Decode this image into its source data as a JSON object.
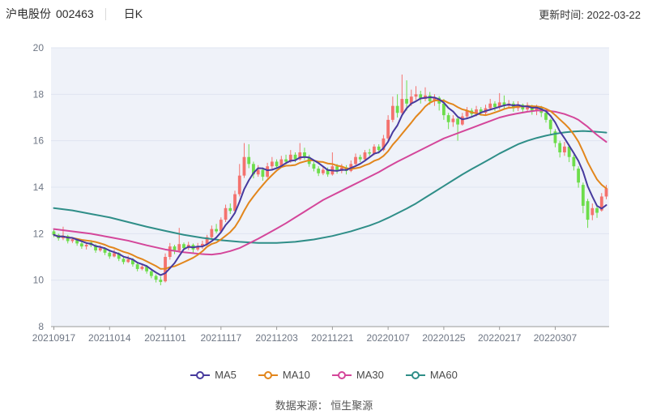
{
  "header": {
    "stock_name": "沪电股份",
    "stock_code": "002463",
    "period_label": "日K",
    "update_label": "更新时间: 2022-03-22"
  },
  "footer": {
    "source_label": "数据来源： 恒生聚源"
  },
  "chart_data": {
    "type": "candlestick",
    "title": "沪电股份 002463 日K",
    "xlabel": "",
    "ylabel": "",
    "ylim": [
      8,
      20
    ],
    "yticks": [
      8,
      10,
      12,
      14,
      16,
      18,
      20
    ],
    "grid": "horizontal",
    "legend_position": "bottom",
    "xticks": [
      {
        "i": 0,
        "label": "20210917"
      },
      {
        "i": 12,
        "label": "20211014"
      },
      {
        "i": 24,
        "label": "20211101"
      },
      {
        "i": 36,
        "label": "20211117"
      },
      {
        "i": 48,
        "label": "20211203"
      },
      {
        "i": 60,
        "label": "20211221"
      },
      {
        "i": 72,
        "label": "20220107"
      },
      {
        "i": 84,
        "label": "20220125"
      },
      {
        "i": 96,
        "label": "20220217"
      },
      {
        "i": 108,
        "label": "20220307"
      }
    ],
    "dates": [
      "20210917",
      "20210922",
      "20210923",
      "20210924",
      "20210927",
      "20210928",
      "20210929",
      "20210930",
      "20211008",
      "20211011",
      "20211012",
      "20211013",
      "20211014",
      "20211015",
      "20211018",
      "20211019",
      "20211020",
      "20211021",
      "20211022",
      "20211025",
      "20211026",
      "20211027",
      "20211028",
      "20211029",
      "20211101",
      "20211102",
      "20211103",
      "20211104",
      "20211105",
      "20211108",
      "20211109",
      "20211110",
      "20211111",
      "20211112",
      "20211115",
      "20211116",
      "20211117",
      "20211118",
      "20211119",
      "20211122",
      "20211123",
      "20211124",
      "20211125",
      "20211126",
      "20211129",
      "20211130",
      "20211201",
      "20211202",
      "20211203",
      "20211206",
      "20211207",
      "20211208",
      "20211209",
      "20211210",
      "20211213",
      "20211214",
      "20211215",
      "20211216",
      "20211217",
      "20211220",
      "20211221",
      "20211222",
      "20211223",
      "20211224",
      "20211227",
      "20211228",
      "20211229",
      "20211230",
      "20211231",
      "20220104",
      "20220105",
      "20220106",
      "20220107",
      "20220110",
      "20220111",
      "20220112",
      "20220113",
      "20220114",
      "20220117",
      "20220118",
      "20220119",
      "20220120",
      "20220121",
      "20220124",
      "20220125",
      "20220126",
      "20220127",
      "20220128",
      "20220207",
      "20220208",
      "20220209",
      "20220210",
      "20220211",
      "20220214",
      "20220215",
      "20220216",
      "20220217",
      "20220218",
      "20220221",
      "20220222",
      "20220223",
      "20220224",
      "20220225",
      "20220228",
      "20220301",
      "20220302",
      "20220303",
      "20220304",
      "20220307",
      "20220308",
      "20220309",
      "20220310",
      "20220311",
      "20220314",
      "20220315",
      "20220316",
      "20220317",
      "20220318",
      "20220321",
      "20220322"
    ],
    "candles_format": [
      "open",
      "high",
      "low",
      "close"
    ],
    "candles": [
      [
        12.1,
        12.22,
        11.85,
        11.95
      ],
      [
        11.95,
        12.0,
        11.7,
        11.8
      ],
      [
        11.8,
        12.3,
        11.72,
        11.9
      ],
      [
        11.9,
        11.95,
        11.58,
        11.68
      ],
      [
        11.68,
        11.85,
        11.6,
        11.76
      ],
      [
        11.76,
        11.8,
        11.48,
        11.58
      ],
      [
        11.58,
        11.65,
        11.35,
        11.45
      ],
      [
        11.45,
        11.62,
        11.32,
        11.52
      ],
      [
        11.62,
        11.72,
        11.42,
        11.5
      ],
      [
        11.5,
        11.55,
        11.18,
        11.28
      ],
      [
        11.28,
        11.5,
        11.22,
        11.38
      ],
      [
        11.38,
        11.42,
        11.08,
        11.18
      ],
      [
        11.18,
        11.25,
        10.92,
        11.02
      ],
      [
        11.02,
        11.32,
        10.98,
        11.16
      ],
      [
        11.16,
        11.2,
        10.82,
        10.92
      ],
      [
        10.92,
        11.0,
        10.68,
        10.78
      ],
      [
        10.78,
        11.05,
        10.74,
        10.9
      ],
      [
        10.9,
        10.95,
        10.58,
        10.68
      ],
      [
        10.68,
        10.75,
        10.38,
        10.48
      ],
      [
        10.48,
        10.7,
        10.42,
        10.58
      ],
      [
        10.58,
        10.65,
        10.28,
        10.38
      ],
      [
        10.38,
        10.45,
        10.08,
        10.18
      ],
      [
        10.18,
        10.25,
        9.9,
        10.02
      ],
      [
        10.02,
        10.15,
        9.78,
        9.92
      ],
      [
        9.95,
        11.15,
        9.9,
        11.0
      ],
      [
        11.0,
        11.6,
        10.88,
        11.45
      ],
      [
        11.45,
        11.52,
        11.12,
        11.28
      ],
      [
        11.28,
        12.25,
        11.18,
        11.55
      ],
      [
        11.55,
        11.62,
        11.28,
        11.38
      ],
      [
        11.38,
        11.65,
        11.3,
        11.52
      ],
      [
        11.52,
        11.58,
        11.18,
        11.32
      ],
      [
        11.32,
        11.6,
        11.25,
        11.46
      ],
      [
        11.46,
        11.7,
        11.35,
        11.56
      ],
      [
        11.56,
        11.95,
        11.5,
        11.85
      ],
      [
        11.85,
        12.35,
        11.78,
        12.2
      ],
      [
        12.2,
        12.42,
        12.02,
        12.1
      ],
      [
        12.1,
        12.7,
        12.05,
        12.6
      ],
      [
        12.6,
        13.25,
        12.5,
        13.1
      ],
      [
        13.1,
        13.3,
        12.85,
        12.98
      ],
      [
        12.98,
        13.85,
        12.92,
        13.7
      ],
      [
        13.7,
        15.0,
        13.6,
        14.5
      ],
      [
        14.5,
        15.9,
        14.4,
        15.3
      ],
      [
        15.3,
        15.85,
        14.82,
        15.0
      ],
      [
        15.0,
        15.1,
        14.38,
        14.55
      ],
      [
        14.55,
        14.95,
        14.45,
        14.75
      ],
      [
        14.75,
        14.85,
        14.28,
        14.45
      ],
      [
        14.45,
        15.05,
        14.4,
        14.9
      ],
      [
        14.9,
        15.3,
        14.78,
        15.1
      ],
      [
        15.1,
        15.2,
        14.78,
        14.9
      ],
      [
        14.9,
        15.35,
        14.85,
        15.2
      ],
      [
        15.2,
        15.4,
        14.98,
        15.1
      ],
      [
        15.1,
        15.6,
        15.05,
        15.4
      ],
      [
        15.4,
        15.5,
        15.08,
        15.2
      ],
      [
        15.2,
        15.9,
        15.15,
        15.5
      ],
      [
        15.5,
        15.7,
        15.18,
        15.3
      ],
      [
        15.3,
        15.4,
        14.88,
        15.0
      ],
      [
        15.0,
        15.1,
        14.68,
        14.8
      ],
      [
        14.8,
        14.9,
        14.48,
        14.6
      ],
      [
        14.6,
        14.9,
        14.52,
        14.75
      ],
      [
        14.75,
        14.85,
        14.45,
        14.55
      ],
      [
        14.55,
        15.5,
        14.5,
        14.9
      ],
      [
        14.9,
        15.0,
        14.58,
        14.7
      ],
      [
        14.7,
        15.0,
        14.6,
        14.85
      ],
      [
        14.85,
        14.95,
        14.55,
        14.7
      ],
      [
        14.7,
        15.15,
        14.65,
        15.0
      ],
      [
        15.0,
        15.45,
        14.95,
        15.3
      ],
      [
        15.3,
        15.4,
        15.08,
        15.2
      ],
      [
        15.2,
        15.6,
        15.15,
        15.5
      ],
      [
        15.5,
        15.65,
        15.35,
        15.45
      ],
      [
        15.45,
        15.85,
        15.38,
        15.75
      ],
      [
        15.75,
        15.85,
        15.45,
        15.6
      ],
      [
        15.6,
        16.25,
        15.55,
        16.1
      ],
      [
        16.1,
        17.1,
        16.0,
        16.9
      ],
      [
        16.9,
        17.9,
        16.8,
        17.5
      ],
      [
        17.5,
        18.0,
        17.0,
        17.2
      ],
      [
        17.2,
        18.85,
        17.1,
        17.8
      ],
      [
        17.8,
        18.6,
        17.3,
        17.6
      ],
      [
        17.6,
        18.2,
        17.5,
        17.9
      ],
      [
        17.9,
        18.35,
        17.75,
        18.0
      ],
      [
        18.0,
        18.15,
        17.6,
        17.8
      ],
      [
        17.8,
        18.3,
        17.7,
        17.95
      ],
      [
        17.95,
        18.1,
        17.55,
        17.7
      ],
      [
        17.7,
        18.0,
        17.5,
        17.85
      ],
      [
        17.85,
        17.92,
        17.3,
        17.6
      ],
      [
        17.6,
        17.8,
        16.9,
        17.1
      ],
      [
        17.1,
        17.2,
        16.5,
        16.8
      ],
      [
        16.8,
        17.1,
        16.6,
        16.95
      ],
      [
        16.95,
        17.0,
        16.0,
        16.7
      ],
      [
        16.7,
        17.2,
        16.65,
        17.05
      ],
      [
        17.05,
        17.45,
        16.95,
        17.3
      ],
      [
        17.3,
        17.4,
        17.0,
        17.15
      ],
      [
        17.15,
        17.5,
        17.05,
        17.35
      ],
      [
        17.35,
        17.45,
        17.08,
        17.2
      ],
      [
        17.2,
        17.55,
        17.1,
        17.4
      ],
      [
        17.4,
        17.8,
        17.3,
        17.6
      ],
      [
        17.6,
        17.7,
        17.28,
        17.45
      ],
      [
        17.45,
        18.05,
        17.35,
        17.65
      ],
      [
        17.65,
        17.95,
        17.35,
        17.5
      ],
      [
        17.5,
        17.75,
        17.4,
        17.6
      ],
      [
        17.6,
        17.7,
        17.25,
        17.4
      ],
      [
        17.4,
        17.7,
        17.28,
        17.55
      ],
      [
        17.55,
        17.6,
        17.18,
        17.35
      ],
      [
        17.35,
        17.65,
        17.25,
        17.5
      ],
      [
        17.5,
        17.55,
        17.12,
        17.3
      ],
      [
        17.3,
        17.55,
        17.1,
        17.45
      ],
      [
        17.45,
        17.5,
        17.02,
        17.2
      ],
      [
        17.2,
        17.3,
        16.78,
        16.9
      ],
      [
        16.9,
        16.95,
        16.28,
        16.5
      ],
      [
        16.4,
        16.5,
        15.72,
        15.9
      ],
      [
        15.9,
        16.0,
        15.28,
        15.5
      ],
      [
        15.5,
        15.95,
        15.35,
        15.75
      ],
      [
        15.75,
        15.85,
        15.08,
        15.3
      ],
      [
        15.3,
        15.4,
        14.72,
        14.9
      ],
      [
        14.8,
        14.9,
        13.98,
        14.2
      ],
      [
        14.1,
        14.2,
        12.88,
        13.2
      ],
      [
        13.4,
        13.5,
        12.25,
        12.6
      ],
      [
        12.8,
        13.3,
        12.58,
        13.1
      ],
      [
        13.1,
        13.25,
        12.68,
        12.9
      ],
      [
        13.0,
        13.75,
        12.95,
        13.6
      ],
      [
        13.6,
        14.1,
        13.48,
        13.95
      ]
    ],
    "series": [
      {
        "name": "MA5",
        "color": "#473a9e",
        "window": 5,
        "source": "close"
      },
      {
        "name": "MA10",
        "color": "#e2861c",
        "window": 10,
        "source": "close"
      },
      {
        "name": "MA30",
        "color": "#d4469a",
        "points": [
          [
            0,
            12.2
          ],
          [
            4,
            12.1
          ],
          [
            8,
            12.0
          ],
          [
            12,
            11.85
          ],
          [
            16,
            11.7
          ],
          [
            20,
            11.5
          ],
          [
            24,
            11.32
          ],
          [
            28,
            11.2
          ],
          [
            32,
            11.12
          ],
          [
            34,
            11.1
          ],
          [
            36,
            11.15
          ],
          [
            38,
            11.25
          ],
          [
            40,
            11.38
          ],
          [
            42,
            11.58
          ],
          [
            44,
            11.78
          ],
          [
            46,
            12.0
          ],
          [
            48,
            12.22
          ],
          [
            50,
            12.45
          ],
          [
            52,
            12.7
          ],
          [
            54,
            12.95
          ],
          [
            56,
            13.2
          ],
          [
            58,
            13.45
          ],
          [
            60,
            13.65
          ],
          [
            62,
            13.85
          ],
          [
            64,
            14.05
          ],
          [
            66,
            14.25
          ],
          [
            68,
            14.45
          ],
          [
            70,
            14.65
          ],
          [
            72,
            14.88
          ],
          [
            74,
            15.1
          ],
          [
            76,
            15.3
          ],
          [
            78,
            15.5
          ],
          [
            80,
            15.7
          ],
          [
            82,
            15.9
          ],
          [
            84,
            16.1
          ],
          [
            86,
            16.25
          ],
          [
            88,
            16.4
          ],
          [
            90,
            16.55
          ],
          [
            92,
            16.7
          ],
          [
            94,
            16.85
          ],
          [
            96,
            17.0
          ],
          [
            98,
            17.1
          ],
          [
            100,
            17.18
          ],
          [
            102,
            17.25
          ],
          [
            104,
            17.3
          ],
          [
            106,
            17.3
          ],
          [
            108,
            17.25
          ],
          [
            110,
            17.15
          ],
          [
            112,
            17.0
          ],
          [
            113,
            16.9
          ],
          [
            114,
            16.75
          ],
          [
            115,
            16.6
          ],
          [
            116,
            16.42
          ],
          [
            117,
            16.25
          ],
          [
            118,
            16.1
          ],
          [
            119,
            15.95
          ]
        ]
      },
      {
        "name": "MA60",
        "color": "#2f8e88",
        "points": [
          [
            0,
            13.1
          ],
          [
            4,
            13.0
          ],
          [
            8,
            12.85
          ],
          [
            12,
            12.7
          ],
          [
            16,
            12.5
          ],
          [
            20,
            12.3
          ],
          [
            24,
            12.12
          ],
          [
            28,
            11.95
          ],
          [
            32,
            11.82
          ],
          [
            36,
            11.72
          ],
          [
            40,
            11.65
          ],
          [
            44,
            11.6
          ],
          [
            48,
            11.6
          ],
          [
            52,
            11.65
          ],
          [
            56,
            11.75
          ],
          [
            60,
            11.9
          ],
          [
            64,
            12.1
          ],
          [
            68,
            12.35
          ],
          [
            70,
            12.5
          ],
          [
            72,
            12.68
          ],
          [
            74,
            12.88
          ],
          [
            76,
            13.08
          ],
          [
            78,
            13.3
          ],
          [
            80,
            13.55
          ],
          [
            82,
            13.8
          ],
          [
            84,
            14.05
          ],
          [
            86,
            14.3
          ],
          [
            88,
            14.55
          ],
          [
            90,
            14.78
          ],
          [
            92,
            15.0
          ],
          [
            94,
            15.22
          ],
          [
            96,
            15.45
          ],
          [
            98,
            15.65
          ],
          [
            100,
            15.85
          ],
          [
            102,
            16.0
          ],
          [
            104,
            16.12
          ],
          [
            106,
            16.22
          ],
          [
            108,
            16.3
          ],
          [
            110,
            16.36
          ],
          [
            112,
            16.4
          ],
          [
            114,
            16.42
          ],
          [
            116,
            16.4
          ],
          [
            118,
            16.37
          ],
          [
            119,
            16.35
          ]
        ]
      }
    ],
    "legend": {
      "labels": [
        "MA5",
        "MA10",
        "MA30",
        "MA60"
      ]
    },
    "colors": {
      "up": "#f4726e",
      "down": "#6ddd4b",
      "plot_bg": "#eff2f9",
      "grid": "#dfe5f1",
      "axis": "#999999",
      "tick_text": "#6e7684"
    }
  }
}
